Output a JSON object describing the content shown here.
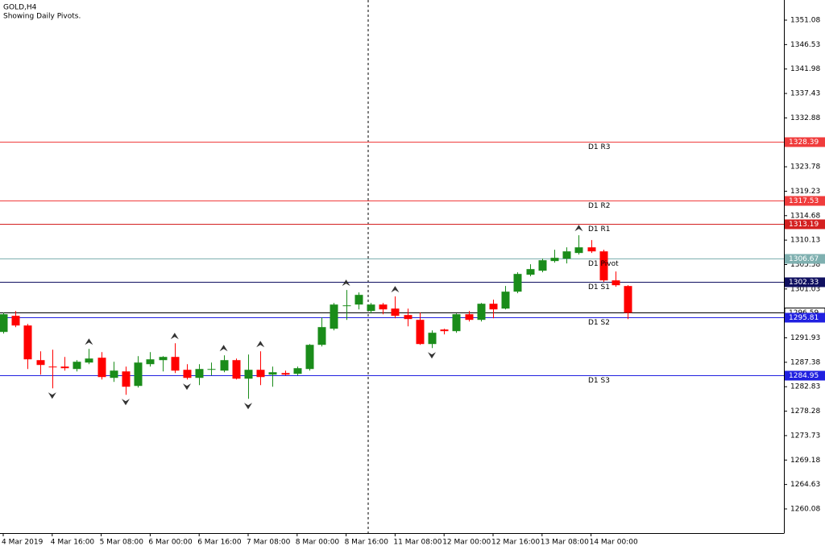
{
  "chart_data": {
    "type": "candlestick",
    "title": "GOLD,H4",
    "subtitle": "Showing Daily Pivots.",
    "categories": [
      "4 Mar 2019",
      null,
      null,
      null,
      "4 Mar 16:00",
      null,
      null,
      null,
      "5 Mar 08:00",
      null,
      null,
      null,
      "6 Mar 00:00",
      null,
      null,
      null,
      "6 Mar 16:00",
      null,
      null,
      null,
      "7 Mar 08:00",
      null,
      null,
      null,
      "8 Mar 00:00",
      null,
      null,
      null,
      "8 Mar 16:00",
      null,
      null,
      null,
      "11 Mar 08:00",
      null,
      null,
      null,
      "12 Mar 00:00",
      null,
      null,
      null,
      "12 Mar 16:00",
      null,
      null,
      null,
      "13 Mar 08:00",
      null,
      null,
      null,
      "14 Mar 00:00",
      null,
      null,
      null
    ],
    "open": [
      1293.03,
      1296.03,
      1294.23,
      1287.78,
      1286.58,
      1286.58,
      1286.13,
      1287.33,
      1288.23,
      1284.48,
      1285.68,
      1282.98,
      1287.03,
      1287.78,
      1288.38,
      1285.98,
      1284.48,
      1285.98,
      1285.83,
      1287.78,
      1284.33,
      1285.98,
      1285.08,
      1285.38,
      1285.23,
      1286.13,
      1290.63,
      1293.63,
      1297.83,
      1298.13,
      1296.93,
      1298.13,
      1297.38,
      1296.18,
      1295.28,
      1290.78,
      1293.48,
      1293.18,
      1296.33,
      1295.28,
      1298.28,
      1297.38,
      1300.53,
      1303.68,
      1304.43,
      1306.23,
      1306.68,
      1307.73,
      1308.78,
      1308.03,
      1302.63,
      1301.58
    ],
    "high": [
      1296.63,
      1296.93,
      1294.53,
      1289.43,
      1289.73,
      1288.38,
      1287.78,
      1289.88,
      1289.28,
      1287.48,
      1286.58,
      1288.53,
      1289.28,
      1288.53,
      1290.93,
      1287.03,
      1287.03,
      1287.33,
      1288.68,
      1288.08,
      1288.83,
      1289.43,
      1286.58,
      1285.83,
      1286.58,
      1290.78,
      1295.73,
      1298.43,
      1300.83,
      1300.38,
      1298.43,
      1298.43,
      1299.63,
      1297.38,
      1296.63,
      1293.33,
      1293.63,
      1296.48,
      1296.93,
      1298.43,
      1299.03,
      1301.58,
      1304.13,
      1305.63,
      1306.68,
      1308.33,
      1308.78,
      1311.03,
      1310.13,
      1308.33,
      1304.28,
      1301.73
    ],
    "low": [
      1292.73,
      1293.93,
      1286.13,
      1285.08,
      1282.53,
      1285.83,
      1285.68,
      1287.03,
      1284.18,
      1283.73,
      1281.33,
      1282.68,
      1286.58,
      1285.68,
      1285.38,
      1284.18,
      1283.13,
      1284.93,
      1285.53,
      1284.18,
      1280.58,
      1283.13,
      1282.83,
      1284.93,
      1284.93,
      1285.83,
      1290.33,
      1293.33,
      1295.28,
      1297.23,
      1296.48,
      1296.33,
      1295.58,
      1294.08,
      1290.63,
      1290.03,
      1292.58,
      1292.88,
      1294.98,
      1294.98,
      1295.58,
      1297.23,
      1300.23,
      1303.38,
      1304.13,
      1305.93,
      1305.78,
      1307.43,
      1307.73,
      1302.33,
      1301.43,
      1295.43
    ],
    "close": [
      1296.33,
      1294.23,
      1287.93,
      1286.88,
      1286.43,
      1286.28,
      1287.48,
      1288.08,
      1284.63,
      1285.83,
      1282.83,
      1287.33,
      1287.93,
      1288.38,
      1285.83,
      1284.48,
      1286.13,
      1286.13,
      1287.78,
      1284.33,
      1285.98,
      1284.63,
      1285.53,
      1285.08,
      1286.28,
      1290.63,
      1293.93,
      1298.13,
      1297.98,
      1299.93,
      1298.13,
      1297.23,
      1296.03,
      1295.43,
      1290.78,
      1292.88,
      1293.18,
      1296.33,
      1295.28,
      1298.28,
      1297.23,
      1300.53,
      1303.83,
      1304.73,
      1306.38,
      1306.83,
      1308.03,
      1308.78,
      1308.03,
      1302.63,
      1301.73,
      1296.59
    ],
    "up_color": "#1a8c1a",
    "down_color": "#ff0000",
    "up_fractals": [
      7,
      14,
      18,
      21,
      28,
      32,
      47
    ],
    "down_fractals": [
      4,
      10,
      15,
      20,
      35
    ],
    "ylim": [
      1255.58,
      1354.83
    ],
    "yticks": [
      1351.08,
      1346.53,
      1341.98,
      1337.43,
      1332.88,
      1328.33,
      1323.78,
      1319.23,
      1314.68,
      1310.13,
      1305.58,
      1301.03,
      1296.48,
      1291.93,
      1287.38,
      1282.83,
      1278.28,
      1273.73,
      1269.18,
      1264.63,
      1260.08
    ],
    "pivots": [
      {
        "name": "D1 R3",
        "value": 1328.39,
        "color": "#f03c3c"
      },
      {
        "name": "D1 R2",
        "value": 1317.53,
        "color": "#f03c3c"
      },
      {
        "name": "D1 R1",
        "value": 1313.19,
        "color": "#d42020"
      },
      {
        "name": "D1 Pivot",
        "value": 1306.67,
        "color": "#7fb0b0"
      },
      {
        "name": "D1 S1",
        "value": 1302.33,
        "color": "#101060"
      },
      {
        "name": "D1 S2",
        "value": 1295.81,
        "color": "#2020e0"
      },
      {
        "name": "D1 S3",
        "value": 1284.95,
        "color": "#2020e0"
      }
    ]
  }
}
